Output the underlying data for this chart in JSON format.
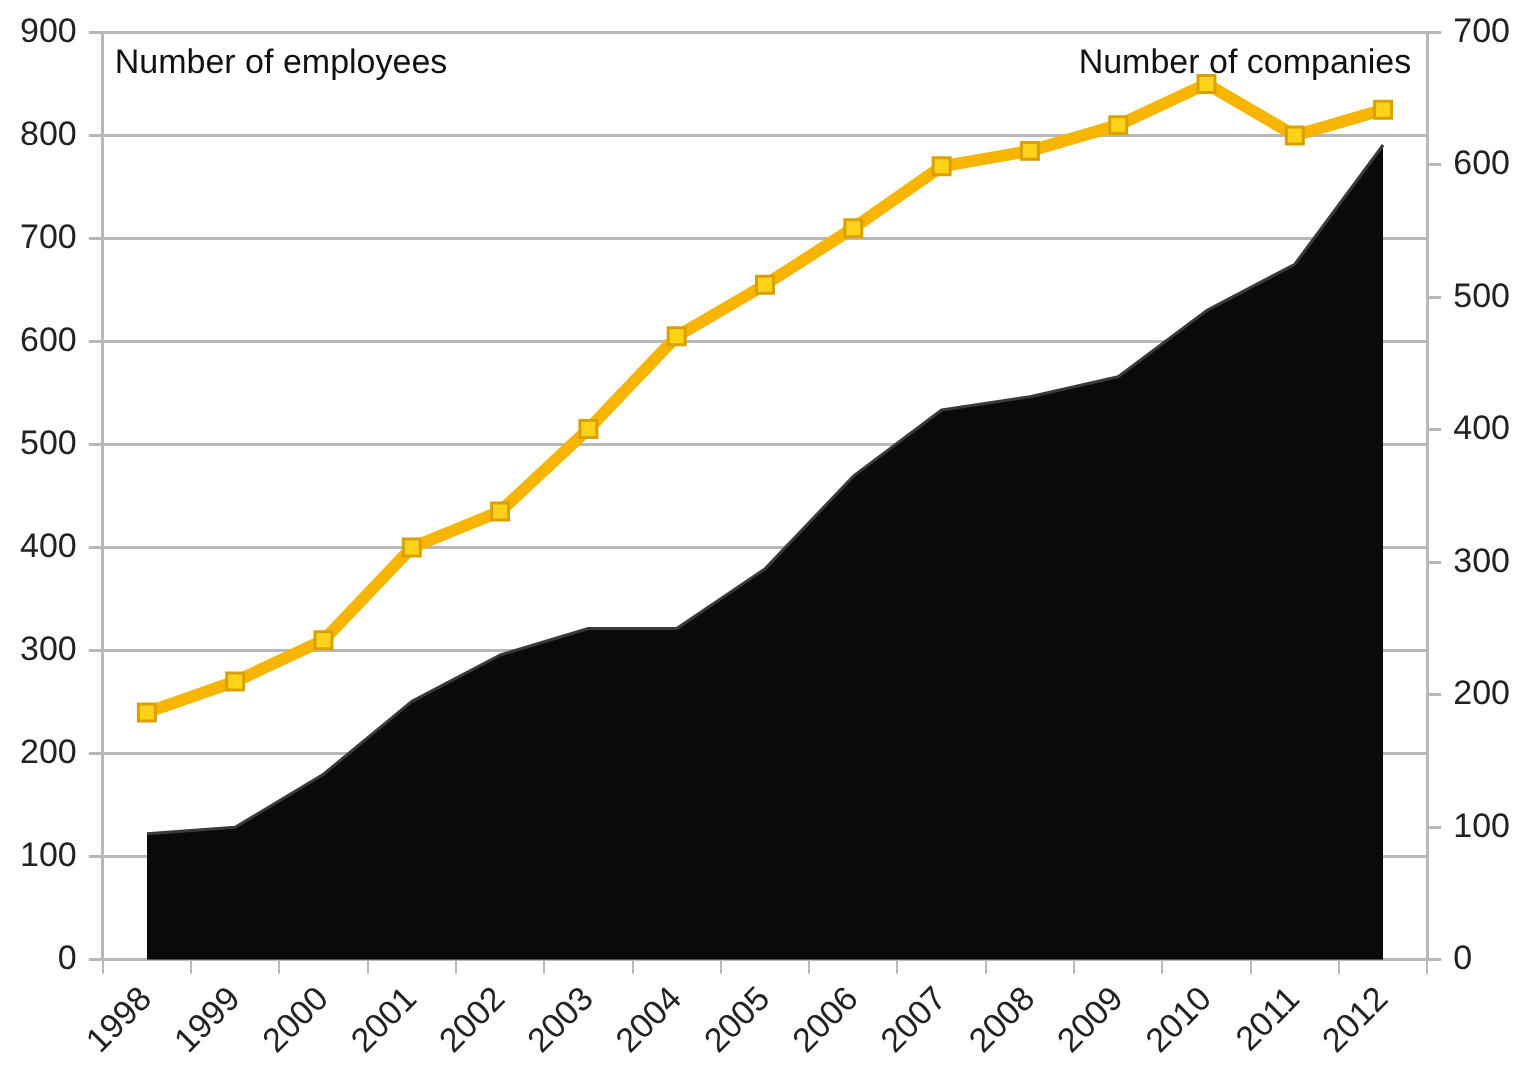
{
  "chart_data": {
    "type": "line",
    "ylabel": "Number of employees",
    "y2label": "Number of companies",
    "categories": [
      "1998",
      "1999",
      "2000",
      "2001",
      "2002",
      "2003",
      "2004",
      "2005",
      "2006",
      "2007",
      "2008",
      "2009",
      "2010",
      "2011",
      "2012"
    ],
    "series": [
      {
        "type": "area",
        "axis": "y2",
        "color": "#0a0a0a",
        "values": [
          95,
          100,
          140,
          195,
          230,
          250,
          250,
          295,
          365,
          415,
          425,
          440,
          490,
          525,
          615
        ]
      },
      {
        "axis": "y",
        "color": "#f7b500",
        "marker": "square",
        "values": [
          240,
          270,
          310,
          400,
          435,
          515,
          605,
          655,
          710,
          770,
          785,
          810,
          850,
          800,
          825
        ]
      }
    ],
    "ylim": [
      0,
      900
    ],
    "yticks": [
      0,
      100,
      200,
      300,
      400,
      500,
      600,
      700,
      800,
      900
    ],
    "y2lim": [
      0,
      700
    ],
    "y2ticks": [
      0,
      100,
      200,
      300,
      400,
      500,
      600,
      700
    ],
    "grid": "y",
    "legend": false
  }
}
